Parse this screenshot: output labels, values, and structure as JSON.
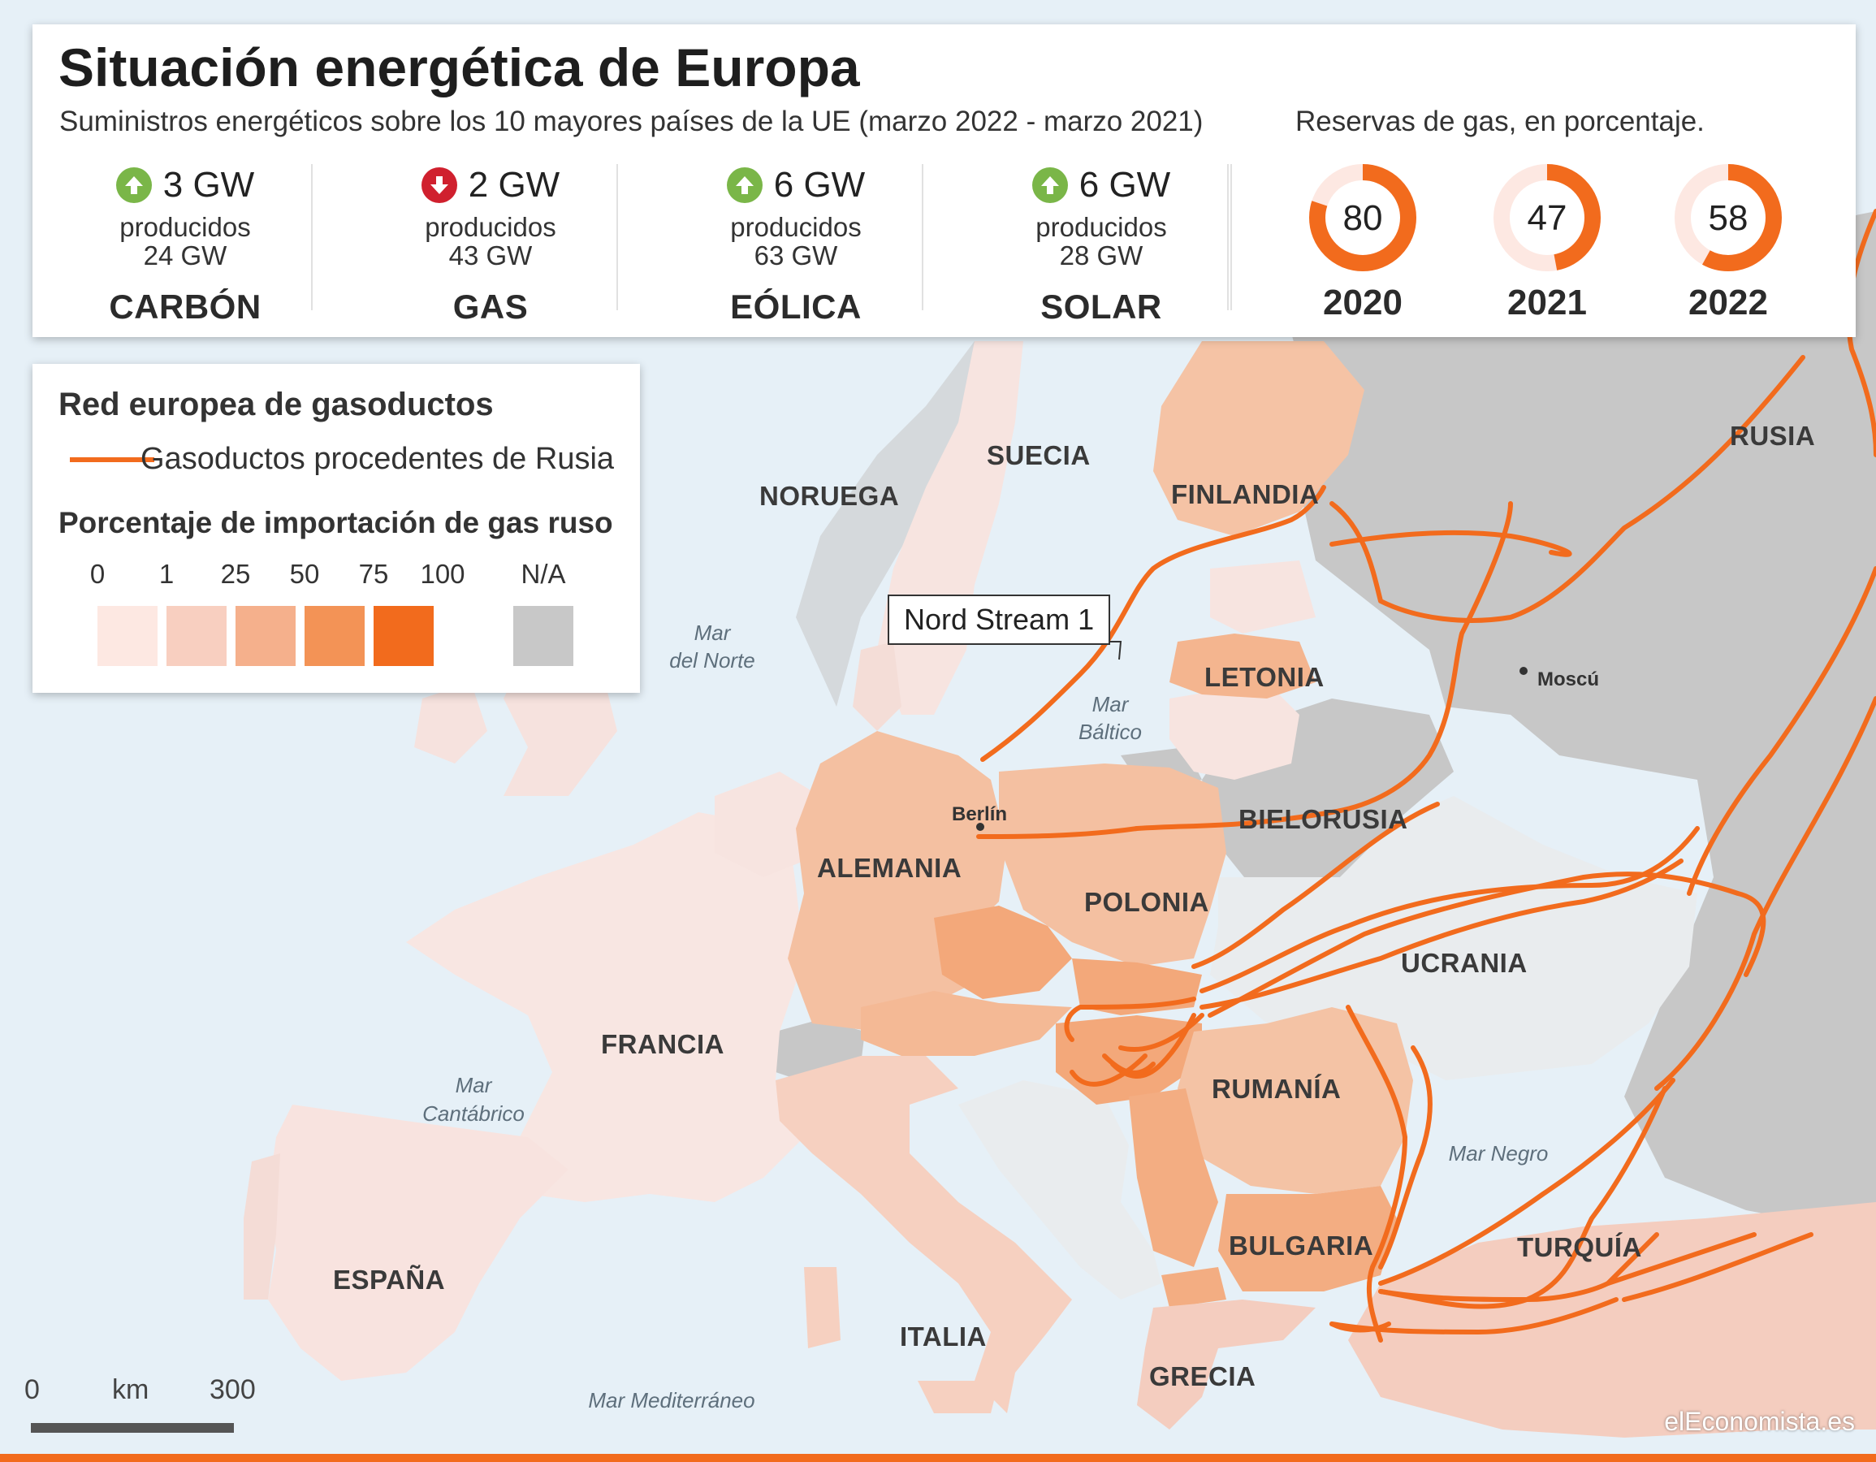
{
  "title": "Situación energética de Europa",
  "subtitle": "Suministros energéticos sobre los 10 mayores países de la UE (marzo 2022 - marzo 2021)",
  "reserves_title": "Reservas de gas, en porcentaje.",
  "stats": [
    {
      "change": "3 GW",
      "direction": "up",
      "produced_label": "producidos",
      "total": "24 GW",
      "category": "CARBÓN"
    },
    {
      "change": "2 GW",
      "direction": "down",
      "produced_label": "producidos",
      "total": "43 GW",
      "category": "GAS"
    },
    {
      "change": "6 GW",
      "direction": "up",
      "produced_label": "producidos",
      "total": "63 GW",
      "category": "EÓLICA"
    },
    {
      "change": "6 GW",
      "direction": "up",
      "produced_label": "producidos",
      "total": "28 GW",
      "category": "SOLAR"
    }
  ],
  "reserves": [
    {
      "year": "2020",
      "value": 80
    },
    {
      "year": "2021",
      "value": 47
    },
    {
      "year": "2022",
      "value": 58
    }
  ],
  "legend": {
    "title": "Red europea de gasoductos",
    "pipeline_label": "Gasoductos procedentes de Rusia",
    "import_title": "Porcentaje de importación de gas ruso",
    "scale": [
      {
        "label": "0",
        "color": "#fde8e2"
      },
      {
        "label": "1",
        "color": "#f8cfc0"
      },
      {
        "label": "25",
        "color": "#f5b08c"
      },
      {
        "label": "50",
        "color": "#f39356"
      },
      {
        "label": "75",
        "color": "#f26b1d"
      },
      {
        "label": "100",
        "color": ""
      },
      {
        "label": "N/A",
        "color": "#c8c8c8"
      }
    ]
  },
  "callout": "Nord Stream 1",
  "countries": {
    "noruega": "NORUEGA",
    "suecia": "SUECIA",
    "finlandia": "FINLANDIA",
    "rusia": "RUSIA",
    "letonia": "LETONIA",
    "bielorusia": "BIELORUSIA",
    "alemania": "ALEMANIA",
    "polonia": "POLONIA",
    "ucrania": "UCRANIA",
    "francia": "FRANCIA",
    "rumania": "RUMANÍA",
    "espana": "ESPAÑA",
    "italia": "ITALIA",
    "bulgaria": "BULGARIA",
    "turquia": "TURQUÍA",
    "grecia": "GRECIA"
  },
  "cities": {
    "berlin": "Berlín",
    "moscu": "Moscú"
  },
  "seas": {
    "norte_1": "Mar",
    "norte_2": "del Norte",
    "baltico_1": "Mar",
    "baltico_2": "Báltico",
    "cantabrico_1": "Mar",
    "cantabrico_2": "Cantábrico",
    "negro": "Mar Negro",
    "mediterraneo": "Mar Mediterráneo"
  },
  "scale_bar": {
    "start": "0",
    "unit": "km",
    "end": "300"
  },
  "credit": "elEconomista.es",
  "colors": {
    "pipeline": "#f26b1d",
    "up": "#7ab648",
    "down": "#d0202e",
    "na": "#c8c8c8"
  }
}
